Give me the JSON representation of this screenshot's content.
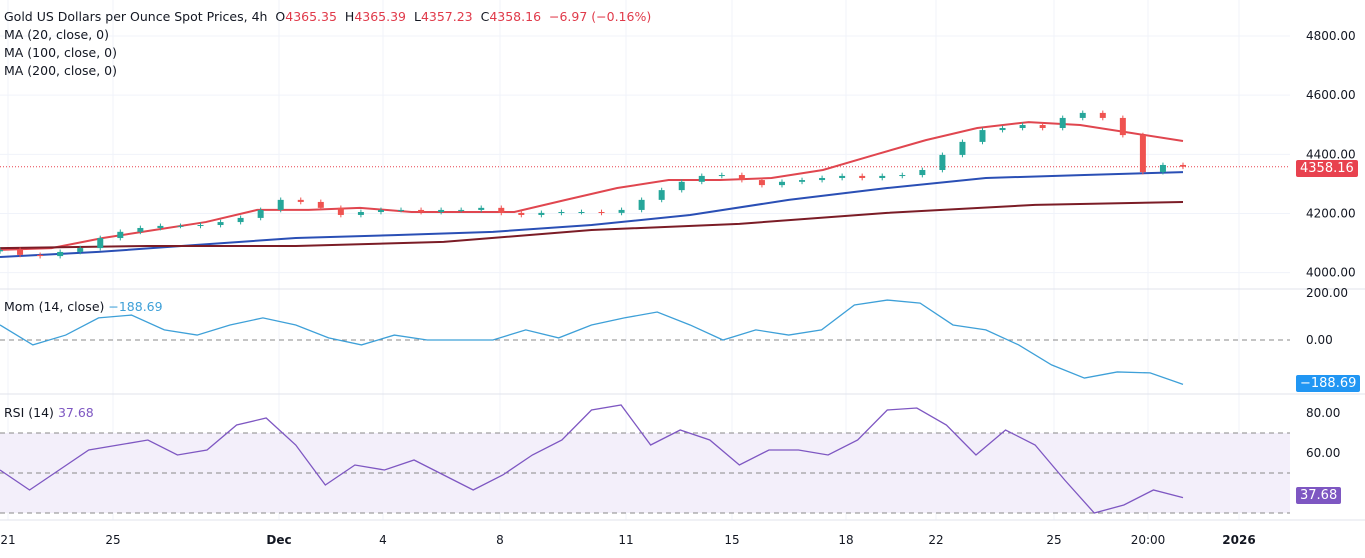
{
  "header": {
    "title": "Gold US Dollars per Ounce Spot Prices, 4h",
    "o_label": "O",
    "o": "4365.35",
    "h_label": "H",
    "h": "4365.39",
    "l_label": "L",
    "l": "4357.23",
    "c_label": "C",
    "c": "4358.16",
    "change": "−6.97 (−0.16%)"
  },
  "legend": {
    "ma20": "MA (20, close, 0)",
    "ma100": "MA (100, close, 0)",
    "ma200": "MA (200, close, 0)",
    "mom": "Mom (14, close)",
    "mom_value": "−188.69",
    "rsi": "RSI (14)",
    "rsi_value": "37.68"
  },
  "tags": {
    "price": "4358.16",
    "mom": "−188.69",
    "rsi": "37.68"
  },
  "colors": {
    "up": "#26a69a",
    "down": "#ef5350",
    "ma20": "#e0464f",
    "ma100": "#2a4fb5",
    "ma200": "#7b1c26",
    "mom": "#3ea0d8",
    "rsi": "#7e57c2",
    "rsi_band": "#f3effa"
  },
  "chart_data": [
    {
      "type": "candlestick",
      "title": "Gold US Dollars per Ounce Spot Prices, 4h",
      "ylim": [
        3950,
        4850
      ],
      "yticks": [
        "4800.00",
        "4600.00",
        "4400.00",
        "4200.00",
        "4000.00"
      ],
      "xticks": [
        "21",
        "25",
        "Dec",
        "4",
        "8",
        "11",
        "15",
        "18",
        "22",
        "25",
        "20:00",
        "2026"
      ],
      "closes": [
        4077,
        4060,
        4056,
        4070,
        4083,
        4117,
        4138,
        4151,
        4158,
        4158,
        4161,
        4171,
        4185,
        4212,
        4246,
        4239,
        4219,
        4195,
        4205,
        4212,
        4212,
        4205,
        4212,
        4212,
        4219,
        4202,
        4195,
        4202,
        4205,
        4205,
        4202,
        4212,
        4246,
        4279,
        4307,
        4327,
        4330,
        4313,
        4296,
        4307,
        4313,
        4320,
        4327,
        4320,
        4327,
        4330,
        4347,
        4398,
        4442,
        4482,
        4489,
        4499,
        4489,
        4523,
        4540,
        4523,
        4465,
        4340,
        4364,
        4358.16
      ],
      "series": [
        {
          "name": "MA (20, close, 0)",
          "values": [
            4077,
            4083,
            4117,
            4144,
            4171,
            4212,
            4212,
            4219,
            4205,
            4205,
            4205,
            4246,
            4286,
            4313,
            4313,
            4320,
            4347,
            4398,
            4448,
            4489,
            4509,
            4499,
            4472,
            4445
          ]
        },
        {
          "name": "MA (100, close, 0)",
          "values": [
            4053,
            4070,
            4094,
            4117,
            4127,
            4138,
            4161,
            4195,
            4246,
            4286,
            4320,
            4330,
            4340
          ]
        },
        {
          "name": "MA (200, close, 0)",
          "values": [
            4083,
            4090,
            4090,
            4104,
            4144,
            4165,
            4202,
            4229,
            4239
          ]
        }
      ]
    },
    {
      "type": "line",
      "title": "Mom (14, close)",
      "ylim": [
        -220,
        230
      ],
      "yticks": [
        "200.00",
        "0.00"
      ],
      "values": [
        64,
        -21,
        21,
        94,
        106,
        43,
        21,
        64,
        94,
        64,
        9,
        -21,
        21,
        0,
        0,
        0,
        43,
        9,
        64,
        94,
        119,
        64,
        0,
        43,
        21,
        43,
        149,
        170,
        157,
        64,
        43,
        -21,
        -106,
        -162,
        -136,
        -140,
        -188.69
      ]
    },
    {
      "type": "line",
      "title": "RSI (14)",
      "ylim": [
        27,
        89
      ],
      "yticks": [
        "80.00",
        "60.00"
      ],
      "bands": [
        30,
        50,
        70
      ],
      "values": [
        51.5,
        41.5,
        51.5,
        61.5,
        64,
        66.5,
        59,
        61.5,
        74,
        77.5,
        64,
        44,
        54,
        51.5,
        56.5,
        49,
        41.5,
        49,
        59,
        66.5,
        81.5,
        84,
        64,
        71.5,
        66.5,
        54,
        61.5,
        61.5,
        59,
        66.5,
        81.5,
        82.5,
        74,
        59,
        71.5,
        64,
        46.5,
        30,
        34,
        41.5,
        37.68
      ]
    }
  ]
}
